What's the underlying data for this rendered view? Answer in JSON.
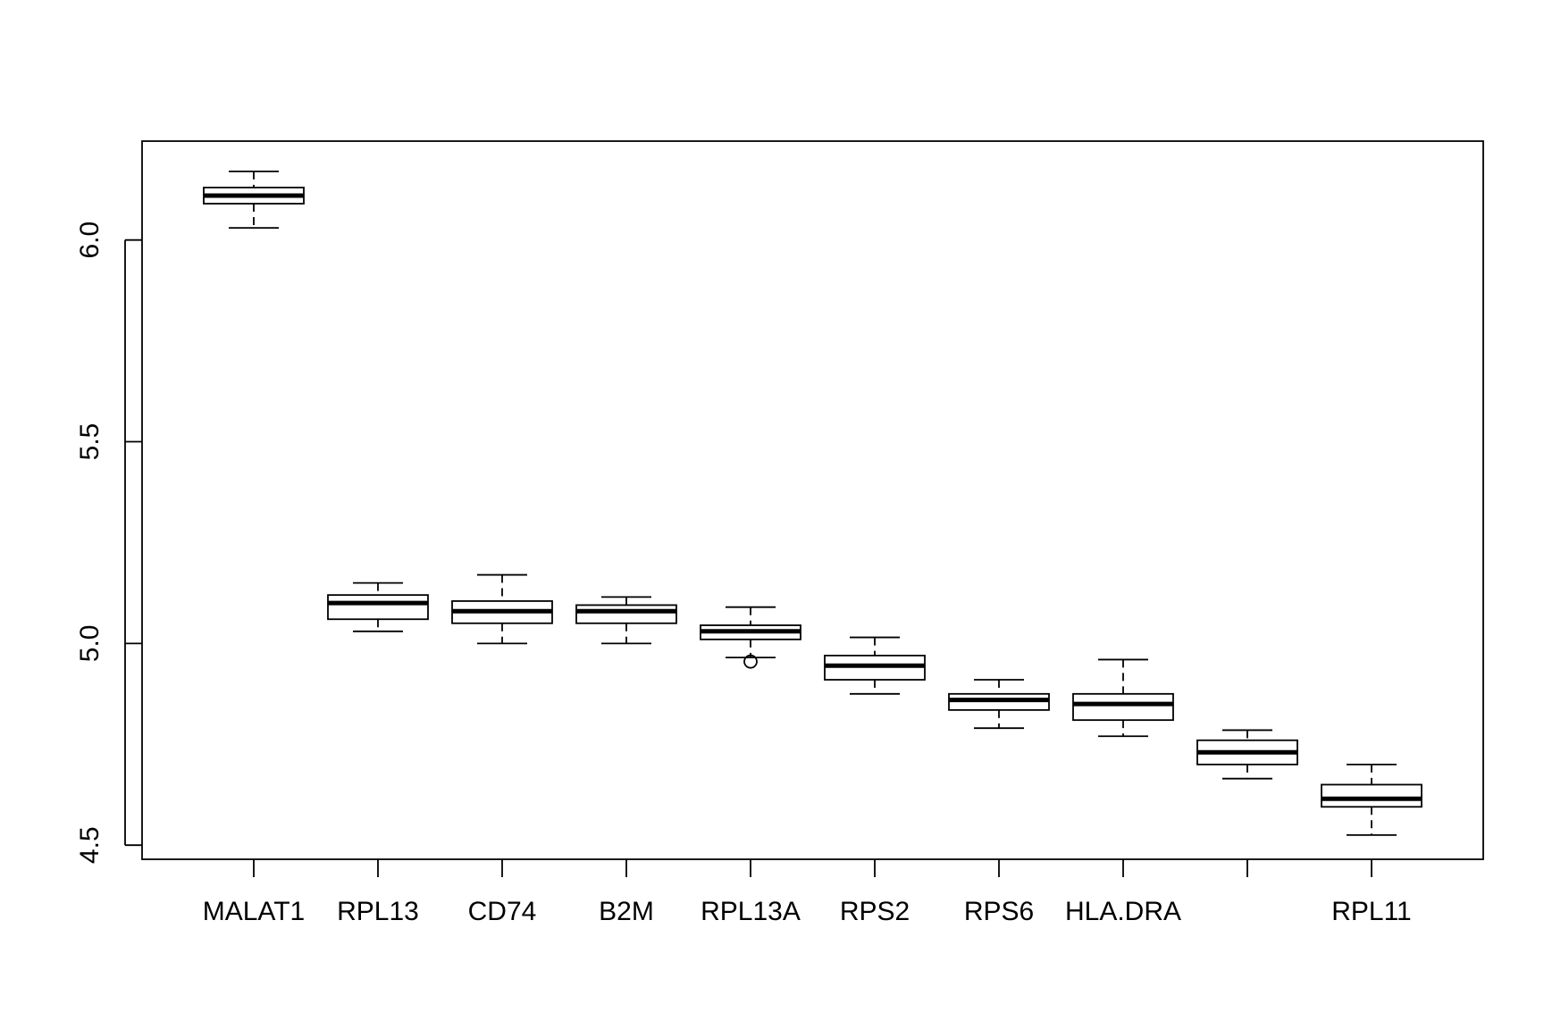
{
  "chart_data": {
    "type": "box",
    "title": "",
    "xlabel": "",
    "ylabel": "",
    "ylim": [
      4.465,
      6.245
    ],
    "yticks": [
      "4.5",
      "5.0",
      "5.5",
      "6.0"
    ],
    "categories": [
      "MALAT1",
      "RPL13",
      "CD74",
      "B2M",
      "RPL13A",
      "RPS2",
      "RPS6",
      "HLA.DRA",
      "",
      "RPL11"
    ],
    "boxes": [
      {
        "min": 6.03,
        "q1": 6.09,
        "median": 6.11,
        "q3": 6.13,
        "max": 6.17,
        "outliers": []
      },
      {
        "min": 5.03,
        "q1": 5.06,
        "median": 5.1,
        "q3": 5.12,
        "max": 5.15,
        "outliers": []
      },
      {
        "min": 5.0,
        "q1": 5.05,
        "median": 5.08,
        "q3": 5.105,
        "max": 5.17,
        "outliers": []
      },
      {
        "min": 5.0,
        "q1": 5.05,
        "median": 5.08,
        "q3": 5.095,
        "max": 5.115,
        "outliers": []
      },
      {
        "min": 4.965,
        "q1": 5.01,
        "median": 5.03,
        "q3": 5.045,
        "max": 5.09,
        "outliers": [
          4.955
        ]
      },
      {
        "min": 4.875,
        "q1": 4.91,
        "median": 4.945,
        "q3": 4.97,
        "max": 5.015,
        "outliers": []
      },
      {
        "min": 4.79,
        "q1": 4.835,
        "median": 4.86,
        "q3": 4.875,
        "max": 4.91,
        "outliers": []
      },
      {
        "min": 4.77,
        "q1": 4.81,
        "median": 4.85,
        "q3": 4.875,
        "max": 4.96,
        "outliers": []
      },
      {
        "min": 4.665,
        "q1": 4.7,
        "median": 4.73,
        "q3": 4.76,
        "max": 4.785,
        "outliers": []
      },
      {
        "min": 4.525,
        "q1": 4.595,
        "median": 4.615,
        "q3": 4.65,
        "max": 4.7,
        "outliers": []
      }
    ],
    "grid": false,
    "legend": "none"
  }
}
